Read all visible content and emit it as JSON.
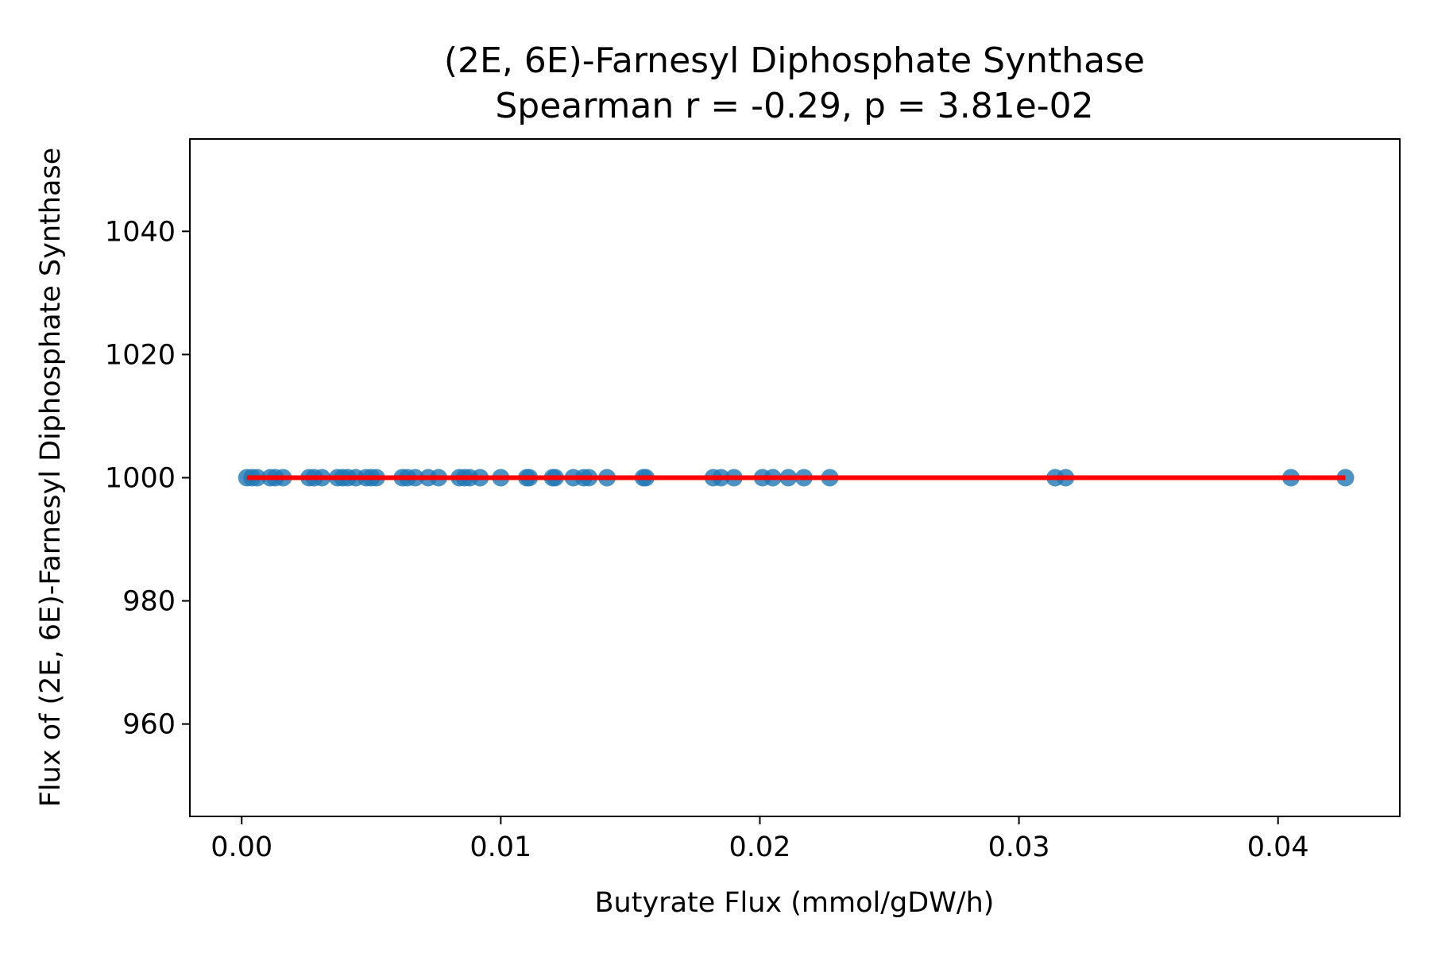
{
  "chart_data": {
    "type": "scatter",
    "title": "(2E, 6E)-Farnesyl Diphosphate Synthase",
    "subtitle": "Spearman r = -0.29, p = 3.81e-02",
    "xlabel": "Butyrate Flux (mmol/gDW/h)",
    "ylabel": "Flux of (2E, 6E)-Farnesyl Diphosphate Synthase",
    "xlim": [
      -0.002,
      0.0447
    ],
    "ylim": [
      945,
      1055
    ],
    "x_ticks": [
      0.0,
      0.01,
      0.02,
      0.03,
      0.04
    ],
    "x_tick_labels": [
      "0.00",
      "0.01",
      "0.02",
      "0.03",
      "0.04"
    ],
    "y_ticks": [
      960,
      980,
      1000,
      1020,
      1040
    ],
    "y_tick_labels": [
      "960",
      "980",
      "1000",
      "1020",
      "1040"
    ],
    "grid": false,
    "colors": {
      "points": "#1f77b4",
      "trend_line": "#ff0000",
      "axes": "#000000"
    },
    "series": [
      {
        "x": [
          0.0002,
          0.0004,
          0.0006,
          0.0011,
          0.0013,
          0.0016,
          0.0026,
          0.0028,
          0.0031,
          0.0037,
          0.0039,
          0.0041,
          0.0044,
          0.0048,
          0.005,
          0.0052,
          0.0062,
          0.0064,
          0.0067,
          0.0072,
          0.0076,
          0.0084,
          0.0086,
          0.0088,
          0.0092,
          0.01,
          0.011,
          0.0111,
          0.012,
          0.0121,
          0.0128,
          0.0132,
          0.0134,
          0.0141,
          0.0155,
          0.0156,
          0.0182,
          0.0185,
          0.019,
          0.0201,
          0.0205,
          0.0211,
          0.0217,
          0.0227,
          0.0314,
          0.0318,
          0.0405,
          0.0426
        ],
        "y": [
          1000,
          1000,
          1000,
          1000,
          1000,
          1000,
          1000,
          1000,
          1000,
          1000,
          1000,
          1000,
          1000,
          1000,
          1000,
          1000,
          1000,
          1000,
          1000,
          1000,
          1000,
          1000,
          1000,
          1000,
          1000,
          1000,
          1000,
          1000,
          1000,
          1000,
          1000,
          1000,
          1000,
          1000,
          1000,
          1000,
          1000,
          1000,
          1000,
          1000,
          1000,
          1000,
          1000,
          1000,
          1000,
          1000,
          1000,
          1000
        ]
      }
    ],
    "trend_line": {
      "x": [
        0.0002,
        0.0426
      ],
      "y": [
        1000,
        1000
      ]
    }
  }
}
